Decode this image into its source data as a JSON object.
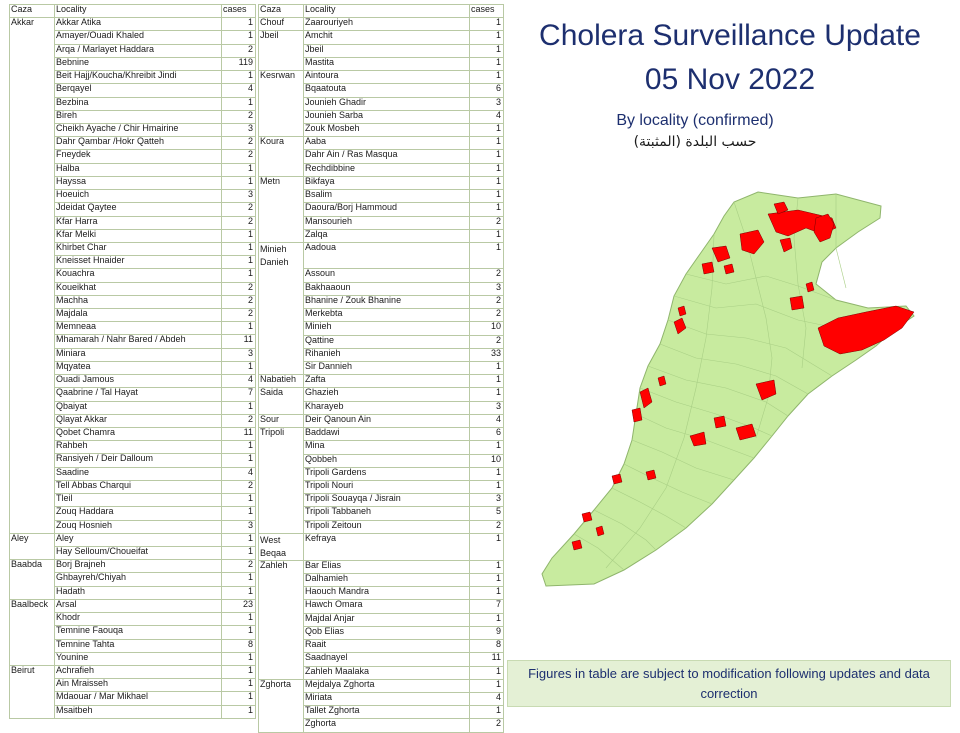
{
  "title": "Cholera Surveillance Update",
  "date": "05 Nov 2022",
  "subtitle": "By locality (confirmed)",
  "subtitle_ar": "حسب البلدة (المثبتة)",
  "note": "Figures in table are subject to modification following updates and data correction",
  "colors": {
    "text_blue": "#1d2f6f",
    "map_fill": "#c8eb9f",
    "map_stroke": "#9ec27b",
    "case_red": "#ff0000",
    "note_bg": "#e4f0d5"
  },
  "chart_data": {
    "type": "table",
    "headers": [
      "Caza",
      "Locality",
      "cases"
    ],
    "tables": [
      {
        "groups": [
          {
            "caza": "Akkar",
            "rows": [
              [
                "Akkar Atika",
                1
              ],
              [
                "Amayer/Ouadi Khaled",
                1
              ],
              [
                "Arqa / Marlayet Haddara",
                2
              ],
              [
                "Bebnine",
                119
              ],
              [
                "Beit Hajj/Koucha/Khreibit Jindi",
                1
              ],
              [
                "Berqayel",
                4
              ],
              [
                "Bezbina",
                1
              ],
              [
                "Bireh",
                2
              ],
              [
                "Cheikh Ayache / Chir Hmairine",
                3
              ],
              [
                "Dahr Qambar /Hokr Qatteh",
                2
              ],
              [
                "Fneydek",
                2
              ],
              [
                "Halba",
                1
              ],
              [
                "Hayssa",
                1
              ],
              [
                "Hoeuich",
                3
              ],
              [
                "Jdeidat Qaytee",
                2
              ],
              [
                "Kfar Harra",
                2
              ],
              [
                "Kfar Melki",
                1
              ],
              [
                "Khirbet Char",
                1
              ],
              [
                "Kneisset Hnaider",
                1
              ],
              [
                "Kouachra",
                1
              ],
              [
                "Koueikhat",
                2
              ],
              [
                "Machha",
                2
              ],
              [
                "Majdala",
                2
              ],
              [
                "Memneaa",
                1
              ],
              [
                "Mhamarah / Nahr Bared / Abdeh",
                11
              ],
              [
                "Miniara",
                3
              ],
              [
                "Mqyatea",
                1
              ],
              [
                "Ouadi Jamous",
                4
              ],
              [
                "Qaabrine / Tal Hayat",
                7
              ],
              [
                "Qbaiyat",
                1
              ],
              [
                "Qlayat Akkar",
                2
              ],
              [
                "Qobet Chamra",
                11
              ],
              [
                "Rahbeh",
                1
              ],
              [
                "Ransiyeh / Deir Dalloum",
                1
              ],
              [
                "Saadine",
                4
              ],
              [
                "Tell Abbas Charqui",
                2
              ],
              [
                "Tleil",
                1
              ],
              [
                "Zouq Haddara",
                1
              ],
              [
                "Zouq Hosnieh",
                3
              ]
            ]
          },
          {
            "caza": "Aley",
            "rows": [
              [
                "Aley",
                1
              ],
              [
                "Hay Selloum/Choueifat",
                1
              ]
            ]
          },
          {
            "caza": "Baabda",
            "rows": [
              [
                "Borj Brajneh",
                2
              ],
              [
                "Ghbayreh/Chiyah",
                1
              ],
              [
                "Hadath",
                1
              ]
            ]
          },
          {
            "caza": "Baalbeck",
            "rows": [
              [
                "Arsal",
                23
              ],
              [
                "Khodr",
                1
              ],
              [
                "Temnine Faouqa",
                1
              ],
              [
                "Temnine Tahta",
                8
              ],
              [
                "Younine",
                1
              ]
            ]
          },
          {
            "caza": "Beirut",
            "rows": [
              [
                "Achrafieh",
                1
              ],
              [
                "Ain Mraisseh",
                1
              ],
              [
                "Mdaouar / Mar Mikhael",
                1
              ],
              [
                "Msaitbeh",
                1
              ]
            ]
          }
        ]
      },
      {
        "groups": [
          {
            "caza": "Chouf",
            "rows": [
              [
                "Zaarouriyeh",
                1
              ]
            ]
          },
          {
            "caza": "Jbeil",
            "rows": [
              [
                "Amchit",
                1
              ],
              [
                "Jbeil",
                1
              ],
              [
                "Mastita",
                1
              ]
            ]
          },
          {
            "caza": "Kesrwan",
            "rows": [
              [
                "Aintoura",
                1
              ],
              [
                "Bqaatouta",
                6
              ],
              [
                "Jounieh Ghadir",
                3
              ],
              [
                "Jounieh Sarba",
                4
              ],
              [
                "Zouk Mosbeh",
                1
              ]
            ]
          },
          {
            "caza": "Koura",
            "rows": [
              [
                "Aaba",
                1
              ],
              [
                "Dahr Ain / Ras Masqua",
                1
              ],
              [
                "Rechdibbine",
                1
              ]
            ]
          },
          {
            "caza": "Metn",
            "rows": [
              [
                "Bikfaya",
                1
              ],
              [
                "Bsalim",
                1
              ],
              [
                "Daoura/Borj Hammoud",
                1
              ],
              [
                "Mansourieh",
                2
              ],
              [
                "Zalqa",
                1
              ]
            ]
          },
          {
            "caza": "Minieh Danieh",
            "rows": [
              [
                "Aadoua",
                1
              ],
              [
                "Assoun",
                2
              ],
              [
                "Bakhaaoun",
                3
              ],
              [
                "Bhanine / Zouk Bhanine",
                2
              ],
              [
                "Merkebta",
                2
              ],
              [
                "Minieh",
                10
              ],
              [
                "Qattine",
                2
              ],
              [
                "Rihanieh",
                33
              ],
              [
                "Sir Dannieh",
                1
              ]
            ]
          },
          {
            "caza": "Nabatieh",
            "rows": [
              [
                "Zafta",
                1
              ]
            ]
          },
          {
            "caza": "Saida",
            "rows": [
              [
                "Ghazieh",
                1
              ],
              [
                "Kharayeb",
                3
              ]
            ]
          },
          {
            "caza": "Sour",
            "rows": [
              [
                "Deir Qanoun Ain",
                4
              ]
            ]
          },
          {
            "caza": "Tripoli",
            "rows": [
              [
                "Baddawi",
                6
              ],
              [
                "Mina",
                1
              ],
              [
                "Qobbeh",
                10
              ],
              [
                "Tripoli Gardens",
                1
              ],
              [
                "Tripoli Nouri",
                1
              ],
              [
                "Tripoli Souayqa / Jisrain",
                3
              ],
              [
                "Tripoli Tabbaneh",
                5
              ],
              [
                "Tripoli Zeitoun",
                2
              ]
            ]
          },
          {
            "caza": "West Beqaa",
            "rows": [
              [
                "Kefraya",
                1
              ]
            ]
          },
          {
            "caza": "Zahleh",
            "rows": [
              [
                "Bar Elias",
                1
              ],
              [
                "Dalhamieh",
                1
              ],
              [
                "Haouch Mandra",
                1
              ],
              [
                "Hawch Omara",
                7
              ],
              [
                "Majdal Anjar",
                1
              ],
              [
                "Qob Elias",
                9
              ],
              [
                "Raait",
                8
              ],
              [
                "Saadnayel",
                11
              ],
              [
                "Zahleh Maalaka",
                1
              ]
            ]
          },
          {
            "caza": "Zghorta",
            "rows": [
              [
                "Mejdalya Zghorta",
                1
              ],
              [
                "Miriata",
                4
              ],
              [
                "Tallet Zghorta",
                1
              ],
              [
                "Zghorta",
                2
              ]
            ]
          }
        ]
      }
    ]
  }
}
